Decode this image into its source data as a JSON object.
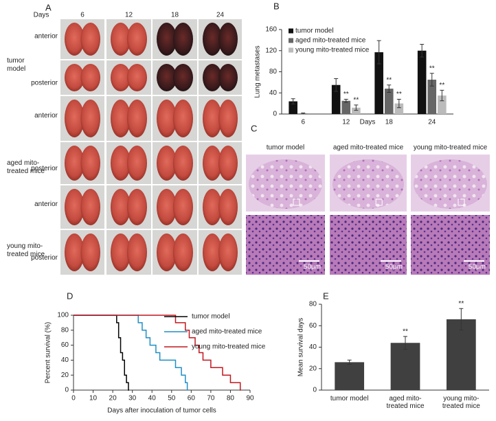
{
  "panel_a": {
    "label": "A",
    "days_label": "Days",
    "days": [
      "6",
      "12",
      "18",
      "24"
    ],
    "groups": [
      {
        "name": [
          "tumor",
          "model"
        ],
        "views": [
          "anterior",
          "posterior"
        ]
      },
      {
        "name": [
          "aged mito-",
          "treated mice"
        ],
        "views": [
          "anterior",
          "posterior"
        ]
      },
      {
        "name": [
          "young mito-",
          "treated mice"
        ],
        "views": [
          "anterior",
          "posterior"
        ]
      }
    ]
  },
  "panel_c": {
    "label": "C",
    "titles": [
      "tumor model",
      "aged mito-treated mice",
      "young mito-treated mice"
    ],
    "scale": "50μm"
  },
  "chart_data": [
    {
      "label": "B",
      "type": "bar",
      "ylabel": "Lung metastases",
      "xlabel": "Days",
      "categories": [
        "6",
        "12",
        "18",
        "24"
      ],
      "ylim": [
        0,
        160
      ],
      "yticks": [
        0,
        40,
        80,
        120,
        160
      ],
      "legend": "upper left",
      "series": [
        {
          "name": "tumor model",
          "color": "#111111",
          "values": [
            24,
            55,
            117,
            120
          ],
          "errors": [
            5,
            12,
            22,
            12
          ]
        },
        {
          "name": "aged mito-treated mice",
          "color": "#666666",
          "values": [
            1,
            25,
            48,
            65
          ],
          "errors": [
            1,
            3,
            7,
            12
          ],
          "marks": [
            null,
            "**",
            "**",
            "**"
          ]
        },
        {
          "name": "young mito-treated mice",
          "color": "#bbbbbb",
          "values": [
            null,
            12,
            20,
            35
          ],
          "errors": [
            null,
            5,
            8,
            10
          ],
          "marks": [
            null,
            "**",
            "**",
            "**"
          ]
        }
      ]
    },
    {
      "label": "D",
      "type": "step",
      "ylabel": "Percent survival (%)",
      "xlabel": "Days after inoculation of tumor cells",
      "xlim": [
        0,
        90
      ],
      "xticks": [
        0,
        10,
        20,
        30,
        40,
        50,
        60,
        70,
        80,
        90
      ],
      "ylim": [
        0,
        100
      ],
      "yticks": [
        0,
        20,
        40,
        60,
        80,
        100
      ],
      "legend": "upper right",
      "series": [
        {
          "name": "tumor model",
          "color": "#000000",
          "x": [
            0,
            22,
            23,
            24,
            25,
            26,
            27,
            28
          ],
          "values": [
            100,
            90,
            70,
            50,
            40,
            20,
            10,
            0
          ]
        },
        {
          "name": "aged mito-treated mice",
          "color": "#1f8fc4",
          "x": [
            0,
            33,
            35,
            37,
            39,
            42,
            44,
            52,
            55,
            57,
            58
          ],
          "values": [
            100,
            90,
            80,
            70,
            60,
            50,
            40,
            30,
            20,
            10,
            0
          ]
        },
        {
          "name": "young mito-treated mice",
          "color": "#c0171e",
          "x": [
            0,
            52,
            57,
            59,
            62,
            64,
            66,
            70,
            76,
            80,
            85
          ],
          "values": [
            100,
            90,
            80,
            70,
            60,
            50,
            40,
            30,
            20,
            10,
            0
          ]
        }
      ]
    },
    {
      "label": "E",
      "type": "bar",
      "ylabel": "Mean survival days",
      "categories": [
        [
          "tumor model"
        ],
        [
          "aged mito-",
          "treated mice"
        ],
        [
          "young mito-",
          "treated mice"
        ]
      ],
      "ylim": [
        0,
        80
      ],
      "yticks": [
        0,
        20,
        40,
        60,
        80
      ],
      "series": [
        {
          "color": "#404040",
          "values": [
            26,
            44,
            66
          ],
          "errors": [
            2,
            6,
            10
          ],
          "marks": [
            null,
            "**",
            "**"
          ]
        }
      ]
    }
  ]
}
